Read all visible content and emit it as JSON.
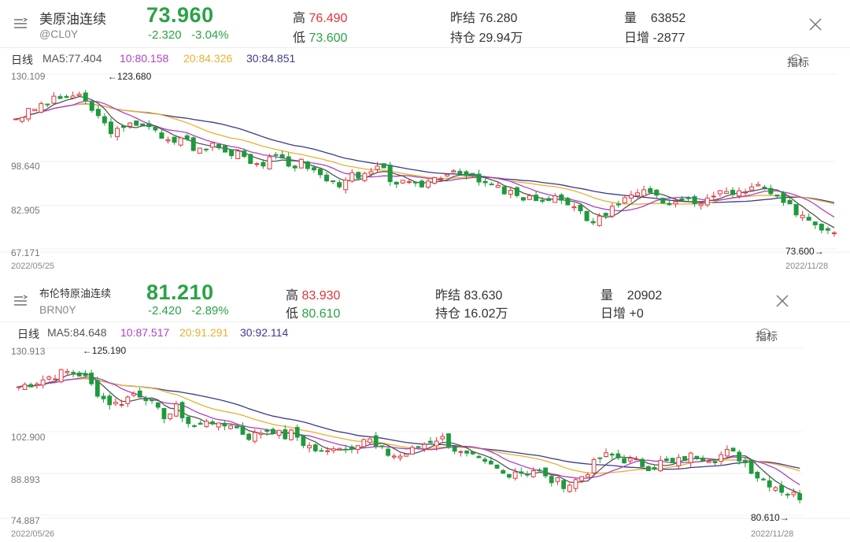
{
  "panels": [
    {
      "name": "美原油连续",
      "code": "@CL0Y",
      "price": "73.960",
      "change": "-2.320",
      "change_pct": "-3.04%",
      "high_label": "高",
      "high": "76.490",
      "low_label": "低",
      "low": "73.600",
      "prev_settle_label": "昨结",
      "prev_settle": "76.280",
      "open_interest_label": "持仓",
      "open_interest": "29.94万",
      "volume_label": "量",
      "volume": "63852",
      "daily_inc_label": "日增",
      "daily_inc": "-2877",
      "ma_bar": {
        "period": "日线",
        "ma5": "MA5:77.404",
        "ma10": "10:80.158",
        "ma20": "20:84.326",
        "ma30": "30:84.851",
        "indicator": "指标"
      },
      "chart_data": {
        "type": "candlestick",
        "y_ticks": [
          "130.109",
          "98.640",
          "82.905",
          "67.171"
        ],
        "y_tick_values": [
          130.109,
          98.64,
          82.905,
          67.171
        ],
        "ylim": [
          67.171,
          130.109
        ],
        "x_start": "2022/05/25",
        "x_end": "2022/11/28",
        "annotation_high": "←123.680",
        "annotation_low": "73.600→",
        "high_value": 123.68,
        "low_value": 73.6,
        "close_path": [
          114.5,
          116,
          118.5,
          120,
          121.5,
          122.5,
          121,
          117,
          112,
          109,
          110.5,
          113,
          112,
          107,
          105,
          108,
          104,
          102,
          106,
          101.5,
          103,
          100,
          97.5,
          99,
          100,
          97,
          98.5,
          95,
          92.5,
          90,
          94,
          92,
          94.5,
          96,
          92,
          90.5,
          89.5,
          91,
          93,
          95,
          96,
          93,
          91,
          90,
          88,
          87,
          84,
          86,
          84.5,
          86,
          82,
          80,
          77.5,
          79,
          82,
          86,
          88.5,
          87,
          85,
          84,
          83,
          85,
          84,
          86,
          88,
          87.5,
          87,
          90,
          88,
          84,
          82,
          80,
          77,
          75,
          73.96
        ],
        "series_colors": {
          "up": "#e0343c",
          "down": "#1e9a3c",
          "ma5": "#555555",
          "ma10": "#b040c8",
          "ma20": "#e8b030",
          "ma30": "#3a3a8c"
        }
      }
    },
    {
      "name": "布伦特原油连续",
      "code": "BRN0Y",
      "price": "81.210",
      "change": "-2.420",
      "change_pct": "-2.89%",
      "high_label": "高",
      "high": "83.930",
      "low_label": "低",
      "low": "80.610",
      "prev_settle_label": "昨结",
      "prev_settle": "83.630",
      "open_interest_label": "持仓",
      "open_interest": "16.02万",
      "volume_label": "量",
      "volume": "20902",
      "daily_inc_label": "日增",
      "daily_inc": "+0",
      "ma_bar": {
        "period": "日线",
        "ma5": "MA5:84.648",
        "ma10": "10:87.517",
        "ma20": "20:91.291",
        "ma30": "30:92.114",
        "indicator": "指标"
      },
      "chart_data": {
        "type": "candlestick",
        "y_ticks": [
          "130.913",
          "102.900",
          "88.893",
          "74.887"
        ],
        "y_tick_values": [
          130.913,
          102.9,
          88.893,
          74.887
        ],
        "ylim": [
          74.887,
          130.913
        ],
        "x_start": "2022/05/26",
        "x_end": "2022/11/28",
        "annotation_high": "←125.190",
        "annotation_low": "80.610→",
        "high_value": 125.19,
        "low_value": 80.61,
        "close_path": [
          118,
          119,
          120,
          121.5,
          122.5,
          123,
          122,
          118,
          114,
          112,
          113.5,
          116,
          115,
          110,
          108,
          111,
          106,
          104,
          108,
          104,
          106,
          103,
          101,
          103,
          104,
          101,
          102.5,
          99,
          97,
          95,
          99,
          97,
          99.5,
          101,
          97,
          95.5,
          94.5,
          96,
          98,
          100,
          101,
          98,
          95,
          94,
          92,
          91,
          88.5,
          90,
          89,
          90.5,
          87,
          86,
          85,
          87,
          90,
          94,
          95,
          94,
          93,
          92,
          91,
          93,
          92,
          94,
          95,
          94.5,
          94,
          96,
          95,
          92,
          88,
          86,
          84,
          82,
          81.21
        ],
        "series_colors": {
          "up": "#e0343c",
          "down": "#1e9a3c",
          "ma5": "#555555",
          "ma10": "#b040c8",
          "ma20": "#e8b030",
          "ma30": "#3a3a8c"
        }
      }
    }
  ]
}
